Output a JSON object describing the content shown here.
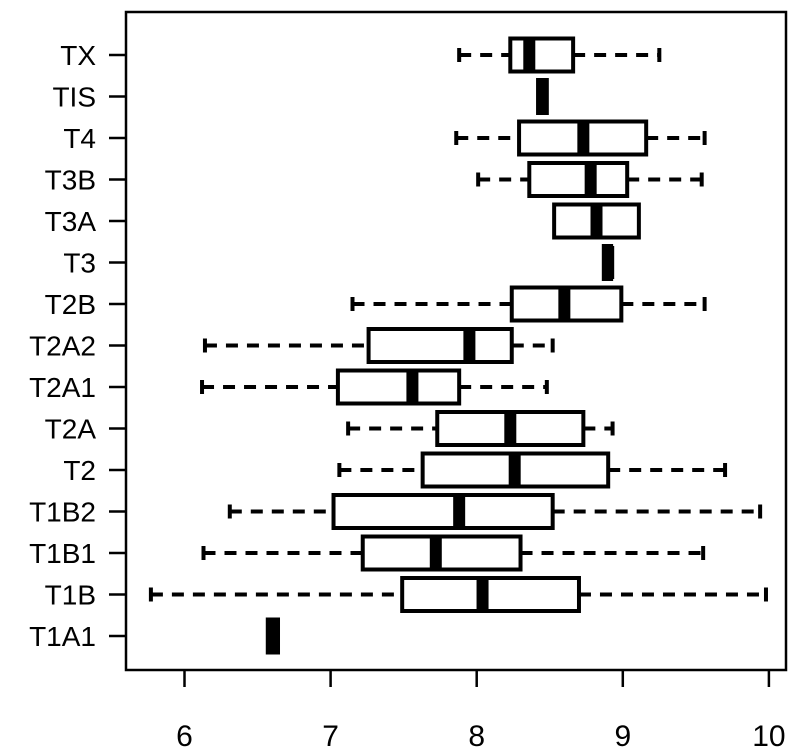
{
  "chart_data": {
    "type": "boxplot",
    "orientation": "horizontal",
    "xlim": [
      5.6,
      10.1
    ],
    "x_ticks": [
      6,
      7,
      8,
      9,
      10
    ],
    "categories": [
      "TX",
      "TIS",
      "T4",
      "T3B",
      "T3A",
      "T3",
      "T2B",
      "T2A2",
      "T2A1",
      "T2A",
      "T2",
      "T1B2",
      "T1B1",
      "T1B",
      "T1A1"
    ],
    "boxes": [
      {
        "label": "TX",
        "whisker_low": 7.88,
        "q1": 8.23,
        "median": 8.36,
        "q3": 8.66,
        "whisker_high": 9.25
      },
      {
        "label": "TIS",
        "whisker_low": 8.42,
        "q1": 8.42,
        "median": 8.45,
        "q3": 8.48,
        "whisker_high": 8.48
      },
      {
        "label": "T4",
        "whisker_low": 7.86,
        "q1": 8.29,
        "median": 8.73,
        "q3": 9.16,
        "whisker_high": 9.56
      },
      {
        "label": "T3B",
        "whisker_low": 8.01,
        "q1": 8.36,
        "median": 8.78,
        "q3": 9.03,
        "whisker_high": 9.54
      },
      {
        "label": "T3A",
        "whisker_low": 8.53,
        "q1": 8.53,
        "median": 8.82,
        "q3": 9.11,
        "whisker_high": 9.11
      },
      {
        "label": "T3",
        "whisker_low": 8.87,
        "q1": 8.87,
        "median": 8.9,
        "q3": 8.92,
        "whisker_high": 8.92
      },
      {
        "label": "T2B",
        "whisker_low": 7.15,
        "q1": 8.24,
        "median": 8.6,
        "q3": 8.99,
        "whisker_high": 9.56
      },
      {
        "label": "T2A2",
        "whisker_low": 6.14,
        "q1": 7.26,
        "median": 7.95,
        "q3": 8.24,
        "whisker_high": 8.52
      },
      {
        "label": "T2A1",
        "whisker_low": 6.12,
        "q1": 7.05,
        "median": 7.56,
        "q3": 7.88,
        "whisker_high": 8.48
      },
      {
        "label": "T2A",
        "whisker_low": 7.12,
        "q1": 7.73,
        "median": 8.23,
        "q3": 8.73,
        "whisker_high": 8.93
      },
      {
        "label": "T2",
        "whisker_low": 7.06,
        "q1": 7.63,
        "median": 8.26,
        "q3": 8.9,
        "whisker_high": 9.7
      },
      {
        "label": "T1B2",
        "whisker_low": 6.31,
        "q1": 7.02,
        "median": 7.88,
        "q3": 8.52,
        "whisker_high": 9.94
      },
      {
        "label": "T1B1",
        "whisker_low": 6.13,
        "q1": 7.22,
        "median": 7.72,
        "q3": 8.3,
        "whisker_high": 9.55
      },
      {
        "label": "T1B",
        "whisker_low": 5.77,
        "q1": 7.49,
        "median": 8.04,
        "q3": 8.7,
        "whisker_high": 9.98
      },
      {
        "label": "T1A1",
        "whisker_low": 6.57,
        "q1": 6.57,
        "median": 6.61,
        "q3": 6.64,
        "whisker_high": 6.64
      }
    ],
    "title": "",
    "xlabel": "",
    "ylabel": "",
    "grid": false,
    "legend": "none"
  }
}
